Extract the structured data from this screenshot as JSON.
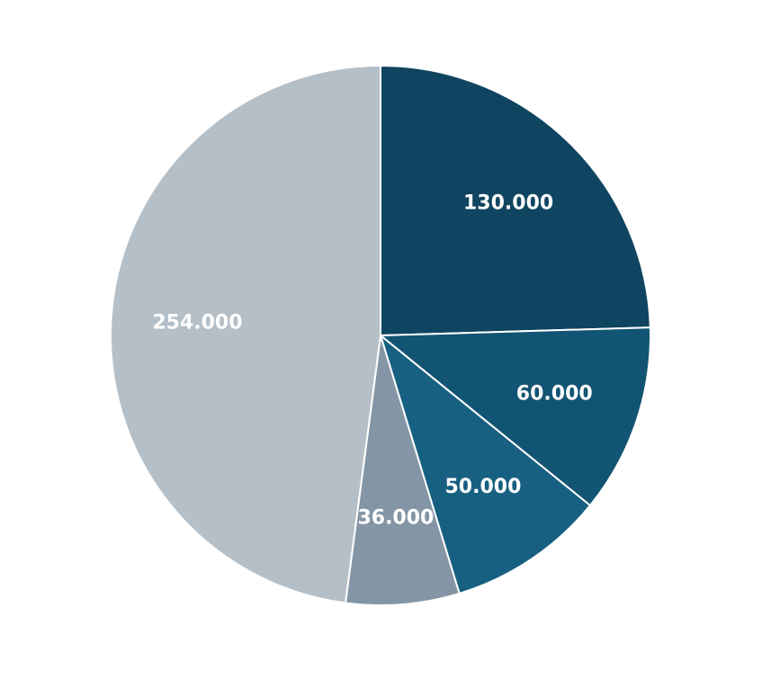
{
  "chart_data": {
    "type": "pie",
    "values": [
      130000,
      60000,
      50000,
      36000,
      254000
    ],
    "value_labels": [
      "130.000",
      "60.000",
      "50.000",
      "36.000",
      "254.000"
    ],
    "colors": [
      "#0f4560",
      "#125473",
      "#186081",
      "#8496a6",
      "#b4bfc8"
    ]
  }
}
